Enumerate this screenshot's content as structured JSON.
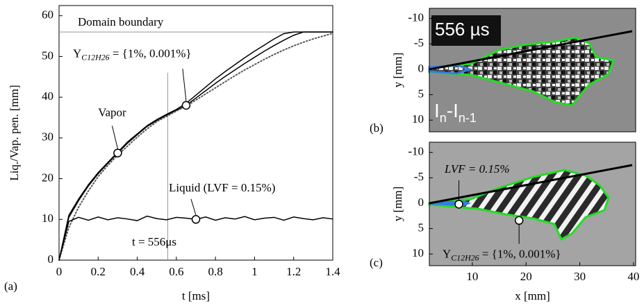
{
  "chart_data": [
    {
      "type": "line",
      "panel_label": "(a)",
      "xlabel": "t [ms]",
      "ylabel": "Liq./Vap. pen. [mm]",
      "xlim": [
        0,
        1.4
      ],
      "ylim": [
        0,
        62.5
      ],
      "xticks": [
        0,
        0.2,
        0.4,
        0.6,
        0.8,
        1,
        1.2,
        1.4
      ],
      "yticks": [
        0,
        10,
        20,
        30,
        40,
        50,
        60
      ],
      "x": [
        0,
        0.05,
        0.1,
        0.15,
        0.2,
        0.25,
        0.3,
        0.35,
        0.4,
        0.45,
        0.5,
        0.55,
        0.6,
        0.65,
        0.7,
        0.75,
        0.8,
        0.85,
        0.9,
        0.95,
        1,
        1.05,
        1.1,
        1.15,
        1.2,
        1.25,
        1.3,
        1.35,
        1.4
      ],
      "series": [
        {
          "name": "Vapor",
          "color": "#000000",
          "style": "solid",
          "values": [
            0,
            11,
            15,
            18.5,
            21.5,
            24,
            26.5,
            29,
            31,
            33,
            34.5,
            35.8,
            37,
            38.5,
            40.5,
            42.5,
            44.5,
            46.3,
            48,
            49.7,
            51.3,
            52.8,
            54.3,
            55.6,
            56,
            56,
            56,
            56,
            56
          ]
        },
        {
          "color": "#000000",
          "style": "solid",
          "values": [
            0,
            10.5,
            14.6,
            18.2,
            21.2,
            23.8,
            26.3,
            28.7,
            30.8,
            32.8,
            34.3,
            35.6,
            36.8,
            38,
            39.8,
            41.6,
            43.4,
            45.1,
            46.7,
            48.3,
            49.8,
            51.3,
            52.7,
            54,
            55.2,
            56,
            56,
            56,
            56
          ]
        },
        {
          "color": "#555555",
          "style": "dotted",
          "values": [
            0,
            8,
            13,
            17,
            20.5,
            23.3,
            25.8,
            28,
            30.2,
            32.2,
            34,
            35.3,
            36.6,
            37.8,
            39.3,
            40.8,
            42.3,
            43.8,
            45.3,
            46.7,
            48,
            49.3,
            50.5,
            51.6,
            52.6,
            53.5,
            54.3,
            55,
            55.7
          ]
        },
        {
          "name": "Liquid (LVF = 0.15%)",
          "color": "#000000",
          "style": "solid",
          "values": [
            0,
            9.5,
            10.5,
            9.8,
            10.6,
            9.9,
            10.4,
            10.1,
            9.7,
            10.8,
            10.2,
            9.9,
            10.5,
            10.3,
            10,
            10.6,
            9.8,
            10.4,
            10.1,
            10.7,
            9.9,
            10.3,
            10.5,
            9.8,
            10.6,
            10.2,
            9.9,
            10.4,
            10.1
          ]
        }
      ],
      "hlines": [
        {
          "value": 56,
          "label": "Domain boundary"
        }
      ],
      "vlines": [
        {
          "value": 0.556,
          "label": "t = 556μs"
        }
      ],
      "markers": [
        {
          "x": 0.3,
          "y": 26.3
        },
        {
          "x": 0.65,
          "y": 38
        },
        {
          "x": 0.7,
          "y": 10
        }
      ],
      "species_label": {
        "text": "Y",
        "sub": "C12H26",
        "rest": " = {1%, 0.001%}"
      }
    },
    {
      "type": "image",
      "panel_label": "(b)",
      "ylabel": "y [mm]",
      "xlim": [
        2,
        40.4
      ],
      "ylim": [
        -12,
        12.3
      ],
      "yticks": [
        -10,
        -5,
        0,
        5,
        10
      ],
      "timestamp": "556 µs",
      "caption": [
        "I",
        "n",
        "-I",
        "n-1"
      ]
    },
    {
      "type": "image",
      "panel_label": "(c)",
      "ylabel": "y [mm]",
      "xlabel": "x [mm]",
      "xlim": [
        2,
        40.4
      ],
      "ylim": [
        -12,
        12.3
      ],
      "xticks": [
        10,
        20,
        30,
        40
      ],
      "yticks": [
        -10,
        -5,
        0,
        5,
        10
      ],
      "lvf_label": "LVF = 0.15%",
      "species_label": {
        "text": "Y",
        "sub": "C12H26",
        "rest": " = {1%, 0.001%}"
      },
      "markers": [
        {
          "x": 7.5,
          "y": 0.2
        },
        {
          "x": 18.7,
          "y": 3.4
        }
      ]
    }
  ]
}
